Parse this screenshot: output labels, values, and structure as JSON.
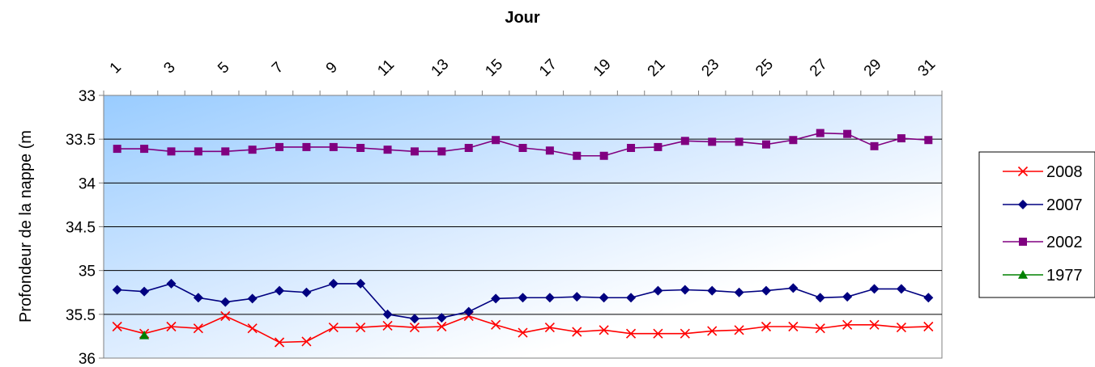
{
  "chart_data": {
    "type": "line",
    "title": "Jour",
    "xlabel": "",
    "ylabel": "Profondeur de la nappe (m",
    "ylim": [
      33,
      36
    ],
    "y_inverted": true,
    "x_axis_position": "top",
    "xlim": [
      1,
      31
    ],
    "x_tick_labels": [
      "1",
      "3",
      "5",
      "7",
      "9",
      "11",
      "13",
      "15",
      "17",
      "19",
      "21",
      "23",
      "25",
      "27",
      "29",
      "31"
    ],
    "y_tick_labels": [
      "33",
      "33.5",
      "34",
      "34.5",
      "35",
      "35.5",
      "36"
    ],
    "grid": true,
    "legend_position": "right",
    "background": "gradient light-blue to white",
    "series": [
      {
        "name": "2008",
        "color": "#ff0000",
        "marker": "x",
        "x": [
          1,
          2,
          3,
          4,
          5,
          6,
          7,
          8,
          9,
          10,
          11,
          12,
          13,
          14,
          15,
          16,
          17,
          18,
          19,
          20,
          21,
          22,
          23,
          24,
          25,
          26,
          27,
          28,
          29,
          30,
          31
        ],
        "values": [
          35.64,
          35.72,
          35.64,
          35.66,
          35.52,
          35.66,
          35.82,
          35.81,
          35.65,
          35.65,
          35.63,
          35.65,
          35.64,
          35.52,
          35.62,
          35.71,
          35.65,
          35.7,
          35.68,
          35.72,
          35.72,
          35.72,
          35.69,
          35.68,
          35.64,
          35.64,
          35.66,
          35.62,
          35.62,
          35.65,
          35.64
        ]
      },
      {
        "name": "2007",
        "color": "#000080",
        "marker": "diamond",
        "x": [
          1,
          2,
          3,
          4,
          5,
          6,
          7,
          8,
          9,
          10,
          11,
          12,
          13,
          14,
          15,
          16,
          17,
          18,
          19,
          20,
          21,
          22,
          23,
          24,
          25,
          26,
          27,
          28,
          29,
          30,
          31
        ],
        "values": [
          35.22,
          35.24,
          35.15,
          35.31,
          35.36,
          35.32,
          35.23,
          35.25,
          35.15,
          35.15,
          35.5,
          35.55,
          35.54,
          35.47,
          35.32,
          35.31,
          35.31,
          35.3,
          35.31,
          35.31,
          35.23,
          35.22,
          35.23,
          35.25,
          35.23,
          35.2,
          35.31,
          35.3,
          35.21,
          35.21,
          35.31
        ]
      },
      {
        "name": "2002",
        "color": "#800080",
        "marker": "square",
        "x": [
          1,
          2,
          3,
          4,
          5,
          6,
          7,
          8,
          9,
          10,
          11,
          12,
          13,
          14,
          15,
          16,
          17,
          18,
          19,
          20,
          21,
          22,
          23,
          24,
          25,
          26,
          27,
          28,
          29,
          30,
          31
        ],
        "values": [
          33.61,
          33.61,
          33.64,
          33.64,
          33.64,
          33.62,
          33.59,
          33.59,
          33.59,
          33.6,
          33.62,
          33.64,
          33.64,
          33.6,
          33.51,
          33.6,
          33.63,
          33.69,
          33.69,
          33.6,
          33.59,
          33.52,
          33.53,
          33.53,
          33.56,
          33.51,
          33.43,
          33.44,
          33.58,
          33.49,
          33.51
        ]
      },
      {
        "name": "1977",
        "color": "#008000",
        "marker": "triangle",
        "x": [
          2
        ],
        "values": [
          35.74
        ]
      }
    ]
  }
}
